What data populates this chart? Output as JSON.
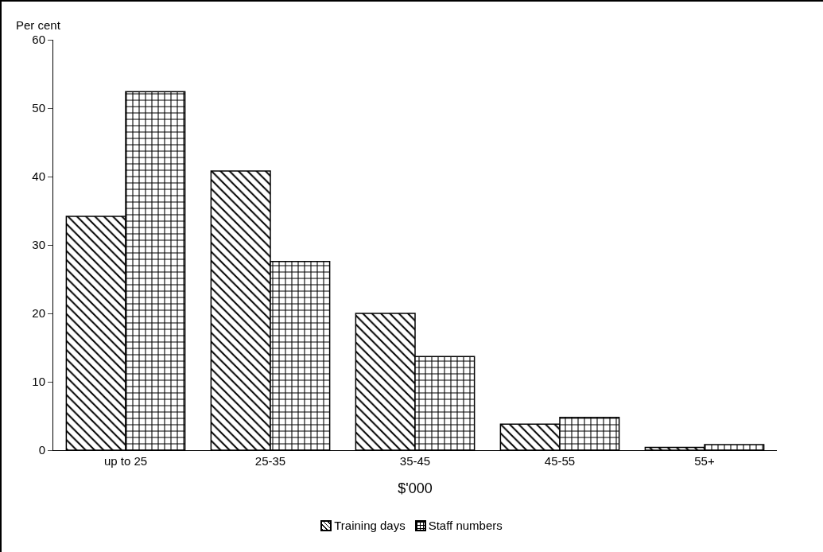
{
  "chart_data": {
    "type": "bar",
    "xlabel": "$'000",
    "ylabel": "Per cent",
    "categories": [
      "up to 25",
      "25-35",
      "35-45",
      "45-55",
      "55+"
    ],
    "series": [
      {
        "name": "Training days",
        "color": "#000000",
        "values": [
          34.2,
          40.8,
          20.0,
          3.8,
          0.4
        ]
      },
      {
        "name": "Staff numbers",
        "color": "#000000",
        "values": [
          52.4,
          27.6,
          13.7,
          4.8,
          0.8
        ]
      }
    ],
    "ylim": [
      0,
      60
    ],
    "yticks": [
      0,
      10,
      20,
      30,
      40,
      50,
      60
    ],
    "grid": false,
    "legend": "bottom"
  }
}
